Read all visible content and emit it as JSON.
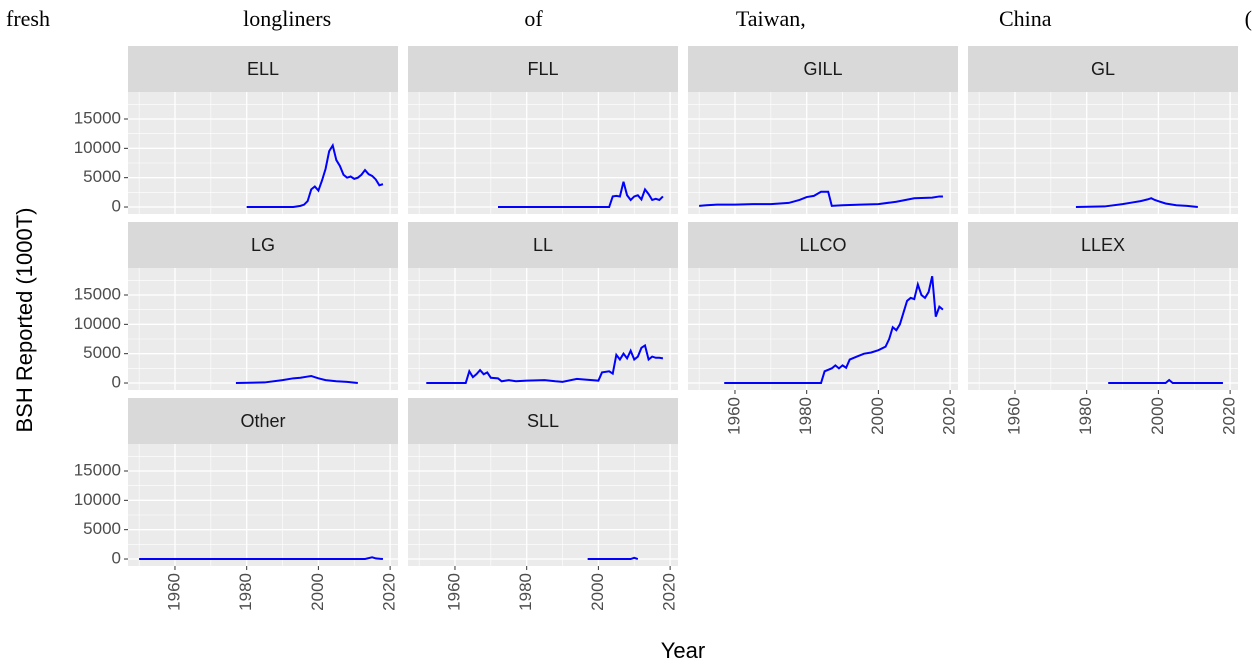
{
  "header": {
    "words": [
      "fresh",
      "longliners",
      "of",
      "Taiwan,",
      "China",
      "("
    ]
  },
  "chart_data": {
    "type": "line",
    "xlabel": "Year",
    "ylabel": "BSH Reported (1000T)",
    "color": "#0000ff",
    "grid": true,
    "xlim": [
      1946.9,
      2022.2
    ],
    "ylim": [
      -1190,
      19600
    ],
    "xticks": [
      1960,
      1980,
      2000,
      2020
    ],
    "yticks": [
      0,
      5000,
      10000,
      15000
    ],
    "xminor": [
      1950,
      1970,
      1990,
      2010
    ],
    "yminor": [
      2500,
      7500,
      12500,
      17500
    ],
    "panels": [
      {
        "title": "ELL",
        "x": [
          1980,
          1985,
          1990,
          1993,
          1995,
          1996,
          1997,
          1998,
          1999,
          2000,
          2001,
          2002,
          2003,
          2004,
          2005,
          2006,
          2007,
          2008,
          2009,
          2010,
          2011,
          2012,
          2013,
          2014,
          2015,
          2016,
          2017,
          2018
        ],
        "values": [
          0,
          0,
          0,
          0,
          200,
          400,
          1000,
          3000,
          3500,
          2800,
          4500,
          6500,
          9500,
          10500,
          8000,
          7000,
          5500,
          5000,
          5200,
          4800,
          5000,
          5500,
          6300,
          5600,
          5300,
          4700,
          3700,
          3900
        ]
      },
      {
        "title": "FLL",
        "x": [
          1972,
          1990,
          2003,
          2004,
          2005,
          2006,
          2007,
          2008,
          2009,
          2010,
          2011,
          2012,
          2013,
          2014,
          2015,
          2016,
          2017,
          2018
        ],
        "values": [
          0,
          0,
          0,
          1800,
          1900,
          1800,
          4300,
          2000,
          1200,
          1800,
          2000,
          1300,
          3000,
          2200,
          1200,
          1400,
          1200,
          1800
        ]
      },
      {
        "title": "GILL",
        "x": [
          1950,
          1952,
          1955,
          1960,
          1965,
          1970,
          1975,
          1978,
          1980,
          1982,
          1984,
          1986,
          1987,
          1990,
          1995,
          2000,
          2005,
          2010,
          2015,
          2017,
          2018
        ],
        "values": [
          200,
          300,
          400,
          400,
          500,
          500,
          700,
          1200,
          1700,
          1900,
          2600,
          2600,
          200,
          300,
          400,
          500,
          900,
          1500,
          1600,
          1800,
          1800
        ]
      },
      {
        "title": "GL",
        "x": [
          1977,
          1985,
          1990,
          1993,
          1995,
          1997,
          1998,
          1999,
          2000,
          2002,
          2005,
          2008,
          2011
        ],
        "values": [
          0,
          100,
          500,
          800,
          1000,
          1300,
          1500,
          1200,
          1000,
          600,
          300,
          200,
          0
        ]
      },
      {
        "title": "LG",
        "x": [
          1977,
          1985,
          1990,
          1993,
          1995,
          1997,
          1998,
          1999,
          2000,
          2002,
          2005,
          2008,
          2011
        ],
        "values": [
          0,
          100,
          500,
          800,
          900,
          1100,
          1200,
          1000,
          800,
          500,
          300,
          200,
          0
        ]
      },
      {
        "title": "LL",
        "x": [
          1952,
          1963,
          1964,
          1965,
          1966,
          1967,
          1968,
          1969,
          1970,
          1972,
          1973,
          1975,
          1977,
          1980,
          1985,
          1988,
          1990,
          1994,
          1996,
          2000,
          2001,
          2003,
          2004,
          2005,
          2006,
          2007,
          2008,
          2009,
          2010,
          2011,
          2012,
          2013,
          2014,
          2015,
          2016,
          2017,
          2018
        ],
        "values": [
          0,
          0,
          2000,
          1000,
          1500,
          2200,
          1500,
          1800,
          900,
          800,
          300,
          500,
          300,
          400,
          500,
          300,
          200,
          700,
          600,
          400,
          1800,
          2000,
          1600,
          4800,
          4000,
          5000,
          4200,
          5500,
          4000,
          4500,
          6000,
          6400,
          4000,
          4500,
          4300,
          4300,
          4200
        ]
      },
      {
        "title": "LLCO",
        "x": [
          1957,
          1970,
          1984,
          1985,
          1987,
          1988,
          1989,
          1990,
          1991,
          1992,
          1994,
          1996,
          1998,
          2000,
          2002,
          2003,
          2004,
          2005,
          2006,
          2007,
          2008,
          2009,
          2010,
          2011,
          2012,
          2013,
          2014,
          2015,
          2016,
          2017,
          2018
        ],
        "values": [
          0,
          0,
          0,
          2000,
          2500,
          3000,
          2500,
          3000,
          2600,
          4000,
          4500,
          5000,
          5200,
          5600,
          6200,
          7500,
          9500,
          9000,
          10000,
          12000,
          14000,
          14500,
          14300,
          16800,
          15000,
          14500,
          15500,
          18200,
          11300,
          13000,
          12500
        ]
      },
      {
        "title": "LLEX",
        "x": [
          1986,
          2000,
          2002,
          2003,
          2004,
          2010,
          2018
        ],
        "values": [
          0,
          0,
          0,
          500,
          0,
          0,
          0
        ]
      },
      {
        "title": "Other",
        "x": [
          1950,
          1980,
          2013,
          2015,
          2016,
          2018
        ],
        "values": [
          0,
          0,
          0,
          300,
          100,
          0
        ]
      },
      {
        "title": "SLL",
        "x": [
          1997,
          2005,
          2009,
          2010,
          2011
        ],
        "values": [
          0,
          0,
          0,
          200,
          0
        ]
      }
    ]
  }
}
